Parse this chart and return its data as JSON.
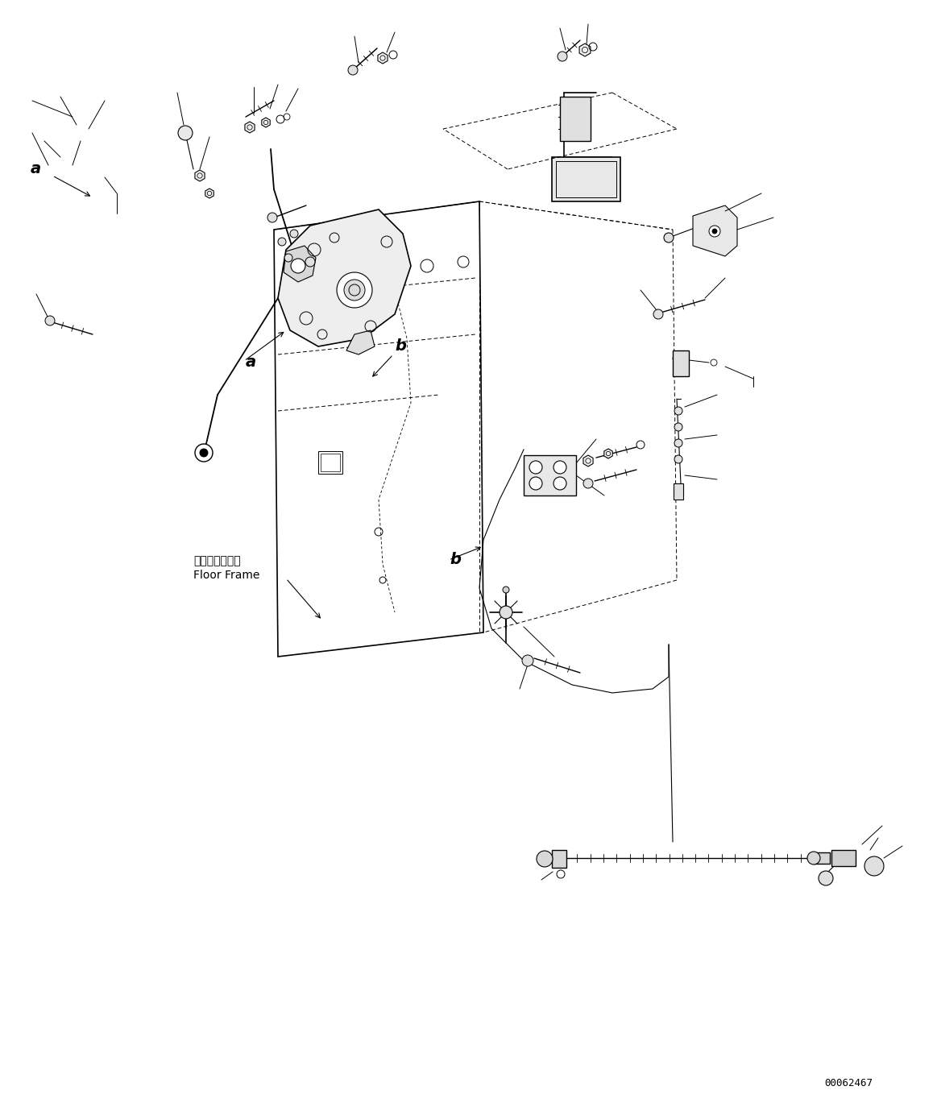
{
  "fig_width": 11.63,
  "fig_height": 13.74,
  "dpi": 100,
  "bg_color": "#ffffff",
  "line_color": "#000000",
  "part_number": "00062467",
  "label_a": "a",
  "label_b": "b",
  "floor_frame_jp": "フロアフレーム",
  "floor_frame_en": "Floor Frame",
  "text_color": "#000000",
  "font_size_label": 14,
  "font_size_small": 8,
  "font_size_partno": 9
}
